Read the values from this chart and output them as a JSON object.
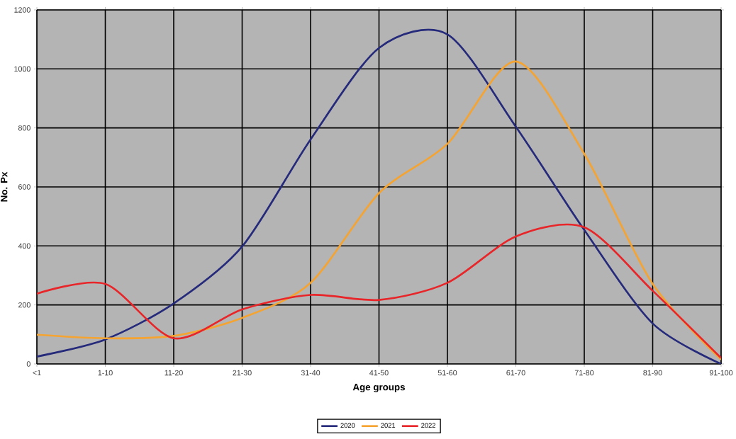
{
  "chart_data": {
    "type": "line",
    "xlabel": "Age groups",
    "ylabel": "No. Px",
    "categories": [
      "<1",
      "1-10",
      "11-20",
      "21-30",
      "31-40",
      "41-50",
      "51-60",
      "61-70",
      "71-80",
      "81-90",
      "91-100"
    ],
    "series": [
      {
        "name": "2020",
        "color": "#262a7a",
        "values": [
          25,
          83,
          205,
          398,
          761,
          1071,
          1117,
          804,
          454,
          137,
          0
        ]
      },
      {
        "name": "2021",
        "color": "#f5a431",
        "values": [
          99,
          87,
          95,
          156,
          275,
          579,
          746,
          1025,
          712,
          271,
          15
        ]
      },
      {
        "name": "2022",
        "color": "#e8262a",
        "values": [
          238,
          271,
          87,
          185,
          234,
          217,
          275,
          432,
          463,
          248,
          20
        ]
      }
    ],
    "ylim": [
      0,
      1200
    ],
    "yticks": [
      0,
      200,
      400,
      600,
      800,
      1000,
      1200
    ],
    "grid": true,
    "legend": "bottom",
    "marker": "none",
    "line_style": "solid"
  }
}
